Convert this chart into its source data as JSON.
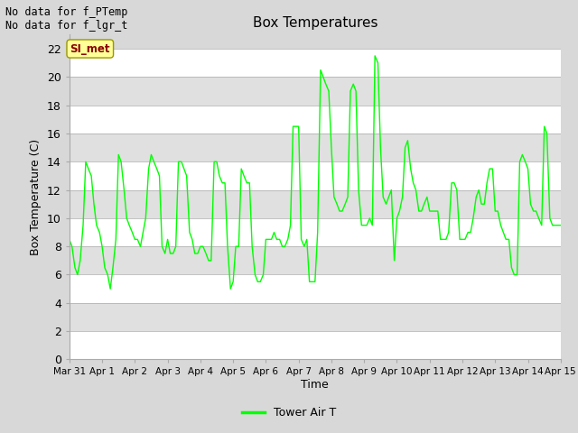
{
  "title": "Box Temperatures",
  "ylabel": "Box Temperature (C)",
  "xlabel": "Time",
  "text_no_data_1": "No data for f_PTemp",
  "text_no_data_2": "No data for f_lgr_t",
  "legend_label": "Tower Air T",
  "legend_line_color": "#00ff00",
  "line_color": "#00ff00",
  "bg_color": "#d8d8d8",
  "plot_bg_color": "#d8d8d8",
  "band_color_light": "#e8e8e8",
  "band_color_dark": "#c8c8c8",
  "ylim": [
    0,
    23
  ],
  "yticks": [
    0,
    2,
    4,
    6,
    8,
    10,
    12,
    14,
    16,
    18,
    20,
    22
  ],
  "xtick_labels": [
    "Mar 31",
    "Apr 1",
    "Apr 2",
    "Apr 3",
    "Apr 4",
    "Apr 5",
    "Apr 6",
    "Apr 7",
    "Apr 8",
    "Apr 9",
    "Apr 10",
    "Apr 11",
    "Apr 12",
    "Apr 13",
    "Apr 14",
    "Apr 15"
  ],
  "si_met_label": "SI_met",
  "si_met_bg": "#ffff99",
  "si_met_text_color": "#8b0000",
  "x_values": [
    0,
    0.08,
    0.17,
    0.25,
    0.33,
    0.42,
    0.5,
    0.58,
    0.67,
    0.75,
    0.83,
    0.92,
    1.0,
    1.08,
    1.17,
    1.25,
    1.33,
    1.42,
    1.5,
    1.58,
    1.67,
    1.75,
    1.83,
    1.92,
    2.0,
    2.08,
    2.17,
    2.25,
    2.33,
    2.42,
    2.5,
    2.58,
    2.67,
    2.75,
    2.83,
    2.92,
    3.0,
    3.08,
    3.17,
    3.25,
    3.33,
    3.42,
    3.5,
    3.58,
    3.67,
    3.75,
    3.83,
    3.92,
    4.0,
    4.08,
    4.17,
    4.25,
    4.33,
    4.42,
    4.5,
    4.58,
    4.67,
    4.75,
    4.83,
    4.92,
    5.0,
    5.08,
    5.17,
    5.25,
    5.33,
    5.42,
    5.5,
    5.58,
    5.67,
    5.75,
    5.83,
    5.92,
    6.0,
    6.08,
    6.17,
    6.25,
    6.33,
    6.42,
    6.5,
    6.58,
    6.67,
    6.75,
    6.83,
    6.92,
    7.0,
    7.08,
    7.17,
    7.25,
    7.33,
    7.42,
    7.5,
    7.58,
    7.67,
    7.75,
    7.83,
    7.92,
    8.0,
    8.08,
    8.17,
    8.25,
    8.33,
    8.42,
    8.5,
    8.58,
    8.67,
    8.75,
    8.83,
    8.92,
    9.0,
    9.08,
    9.17,
    9.25,
    9.33,
    9.42,
    9.5,
    9.58,
    9.67,
    9.75,
    9.83,
    9.92,
    10.0,
    10.08,
    10.17,
    10.25,
    10.33,
    10.42,
    10.5,
    10.58,
    10.67,
    10.75,
    10.83,
    10.92,
    11.0,
    11.08,
    11.17,
    11.25,
    11.33,
    11.42,
    11.5,
    11.58,
    11.67,
    11.75,
    11.83,
    11.92,
    12.0,
    12.08,
    12.17,
    12.25,
    12.33,
    12.42,
    12.5,
    12.58,
    12.67,
    12.75,
    12.83,
    12.92,
    13.0,
    13.08,
    13.17,
    13.25,
    13.33,
    13.42,
    13.5,
    13.58,
    13.67,
    13.75,
    13.83,
    13.92,
    14.0,
    14.08,
    14.17,
    14.25,
    14.33,
    14.42,
    14.5,
    14.58,
    14.67,
    14.75,
    14.83,
    14.92,
    15.0
  ],
  "y_values": [
    8.5,
    8.0,
    6.5,
    6.0,
    7.0,
    9.5,
    14.0,
    13.5,
    13.0,
    11.0,
    9.5,
    9.0,
    8.0,
    6.5,
    6.0,
    5.0,
    6.5,
    8.5,
    14.5,
    14.0,
    12.0,
    10.0,
    9.5,
    9.0,
    8.5,
    8.5,
    8.0,
    9.0,
    10.0,
    13.5,
    14.5,
    14.0,
    13.5,
    13.0,
    8.0,
    7.5,
    8.5,
    7.5,
    7.5,
    8.0,
    14.0,
    14.0,
    13.5,
    13.0,
    9.0,
    8.5,
    7.5,
    7.5,
    8.0,
    8.0,
    7.5,
    7.0,
    7.0,
    14.0,
    14.0,
    13.0,
    12.5,
    12.5,
    8.0,
    5.0,
    5.5,
    8.0,
    8.0,
    13.5,
    13.0,
    12.5,
    12.5,
    8.0,
    6.0,
    5.5,
    5.5,
    6.0,
    8.5,
    8.5,
    8.5,
    9.0,
    8.5,
    8.5,
    8.0,
    8.0,
    8.5,
    9.5,
    16.5,
    16.5,
    16.5,
    8.5,
    8.0,
    8.5,
    5.5,
    5.5,
    5.5,
    9.0,
    20.5,
    20.0,
    19.5,
    19.0,
    15.0,
    11.5,
    11.0,
    10.5,
    10.5,
    11.0,
    11.5,
    19.0,
    19.5,
    19.0,
    12.0,
    9.5,
    9.5,
    9.5,
    10.0,
    9.5,
    21.5,
    21.0,
    15.0,
    11.5,
    11.0,
    11.5,
    12.0,
    7.0,
    10.0,
    10.5,
    11.5,
    15.0,
    15.5,
    13.5,
    12.5,
    12.0,
    10.5,
    10.5,
    11.0,
    11.5,
    10.5,
    10.5,
    10.5,
    10.5,
    8.5,
    8.5,
    8.5,
    9.0,
    12.5,
    12.5,
    12.0,
    8.5,
    8.5,
    8.5,
    9.0,
    9.0,
    10.0,
    11.5,
    12.0,
    11.0,
    11.0,
    12.5,
    13.5,
    13.5,
    10.5,
    10.5,
    9.5,
    9.0,
    8.5,
    8.5,
    6.5,
    6.0,
    6.0,
    14.0,
    14.5,
    14.0,
    13.5,
    11.0,
    10.5,
    10.5,
    10.0,
    9.5,
    16.5,
    16.0,
    10.0,
    9.5,
    9.5,
    9.5,
    9.5
  ]
}
